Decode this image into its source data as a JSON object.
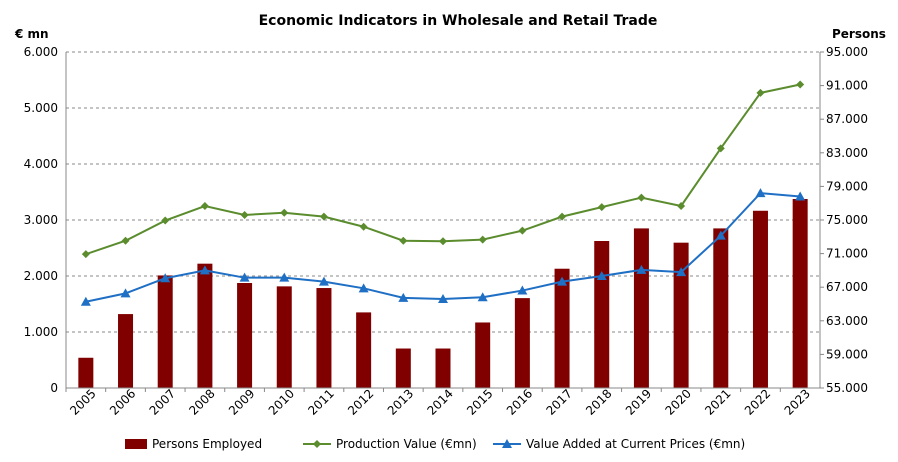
{
  "chart_data": {
    "type": "bar",
    "title": "Economic Indicators in Wholesale and Retail Trade",
    "y_left_label": "€ mn",
    "y_right_label": "Persons",
    "categories": [
      "2005",
      "2006",
      "2007",
      "2008",
      "2009",
      "2010",
      "2011",
      "2012",
      "2013",
      "2014",
      "2015",
      "2016",
      "2017",
      "2018",
      "2019",
      "2020",
      "2021",
      "2022",
      "2023"
    ],
    "y_left": {
      "min": 0,
      "max": 6000,
      "step": 1000,
      "tick_labels": [
        "0",
        "1.000",
        "2.000",
        "3.000",
        "4.000",
        "5.000",
        "6.000"
      ]
    },
    "y_right": {
      "min": 55000,
      "max": 95000,
      "step": 4000,
      "tick_labels": [
        "55.000",
        "59.000",
        "63.000",
        "67.000",
        "71.000",
        "75.000",
        "79.000",
        "83.000",
        "87.000",
        "91.000",
        "95.000"
      ]
    },
    "grid": true,
    "legend_position": "bottom",
    "series": [
      {
        "name": "Persons Employed",
        "type": "bar",
        "axis": "right",
        "color": "#800000",
        "values": [
          58600,
          63800,
          68400,
          69800,
          67500,
          67100,
          66900,
          64000,
          59700,
          59700,
          62800,
          65700,
          69200,
          72500,
          74000,
          72300,
          74000,
          76100,
          77500
        ]
      },
      {
        "name": "Production Value (€mn)",
        "type": "line",
        "axis": "left",
        "color": "#5B8C2E",
        "marker": "diamond",
        "values": [
          2390,
          2630,
          2990,
          3250,
          3090,
          3130,
          3060,
          2880,
          2630,
          2620,
          2650,
          2810,
          3060,
          3230,
          3400,
          3250,
          4280,
          5270,
          5420
        ]
      },
      {
        "name": "Value Added at Current Prices (€mn)",
        "type": "line",
        "axis": "left",
        "color": "#1F6FC5",
        "marker": "triangle",
        "values": [
          1540,
          1690,
          1960,
          2100,
          1970,
          1970,
          1900,
          1780,
          1610,
          1590,
          1620,
          1740,
          1900,
          2000,
          2110,
          2070,
          2720,
          3480,
          3420
        ]
      }
    ]
  }
}
